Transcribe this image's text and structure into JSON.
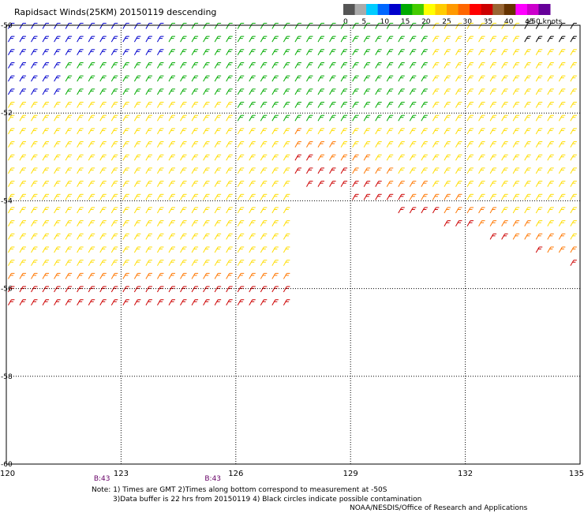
{
  "title": "Rapidsact Winds(25KM) 20150119 descending",
  "legend": {
    "labels": [
      "0",
      "5",
      "10",
      "15",
      "20",
      "25",
      "30",
      "35",
      "40",
      "45",
      ">50 knots"
    ],
    "colors": [
      "#555555",
      "#aaaaaa",
      "#00ccff",
      "#0066ff",
      "#0000cc",
      "#00aa00",
      "#44cc00",
      "#ffff00",
      "#ffcc00",
      "#ff9900",
      "#ff6600",
      "#ff0000",
      "#cc0000",
      "#996633",
      "#663300",
      "#ff00ff",
      "#cc00cc",
      "#660099"
    ]
  },
  "map": {
    "lon_ticks": [
      "120",
      "123",
      "126",
      "129",
      "132",
      "135"
    ],
    "lat_ticks": [
      "-50",
      "-52",
      "-54",
      "-56",
      "-58",
      "-60"
    ],
    "lon_range": [
      120,
      135
    ],
    "lat_range": [
      -60,
      -50
    ],
    "gridlines": "dotted",
    "time_markers": [
      {
        "label": "B:43",
        "lon": 122.5
      },
      {
        "label": "B:43",
        "lon": 125.4
      }
    ],
    "speed_colors": {
      "low": "#0000cc",
      "mid": "#00aa00",
      "high": "#ffdd00",
      "higher": "#ff7700",
      "highest": "#cc0000",
      "extreme": "#000000"
    }
  },
  "notes": {
    "line1": "Note: 1) Times are GMT 2)Times along bottom correspond to measurement at -50S",
    "line2": "3)Data buffer is 22 hrs from 20150119 4) Black circles indicate possible contamination",
    "credit": "NOAA/NESDIS/Office of Research and Applications"
  }
}
